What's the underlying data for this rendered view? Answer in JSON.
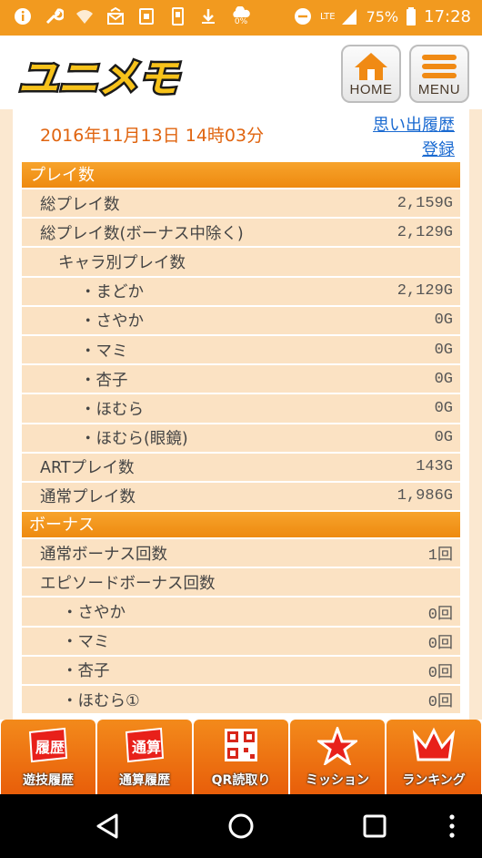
{
  "status_bar": {
    "signal_label": "0%",
    "network": "LTE",
    "battery": "75%",
    "time": "17:28",
    "icons": [
      "info-icon",
      "wrench-icon",
      "wifi-icon",
      "mail-icon",
      "sim-icon",
      "download-icon",
      "cloud-icon",
      "dnd-icon",
      "signal-icon",
      "battery-icon"
    ]
  },
  "header": {
    "logo_text": "ユニメモ",
    "home_label": "HOME",
    "menu_label": "MENU"
  },
  "content": {
    "datetime": "2016年11月13日  14時03分",
    "history_link_line1": "思い出履歴",
    "history_link_line2": "登録"
  },
  "sections": [
    {
      "title": "プレイ数",
      "rows": [
        {
          "label": "総プレイ数",
          "value": "2,159G"
        },
        {
          "label": "総プレイ数(ボーナス中除く)",
          "value": "2,129G"
        },
        {
          "label": "キャラ別プレイ数",
          "value": ""
        },
        {
          "label": "・まどか",
          "value": "2,129G"
        },
        {
          "label": "・さやか",
          "value": "0G"
        },
        {
          "label": "・マミ",
          "value": "0G"
        },
        {
          "label": "・杏子",
          "value": "0G"
        },
        {
          "label": "・ほむら",
          "value": "0G"
        },
        {
          "label": "・ほむら(眼鏡)",
          "value": "0G"
        },
        {
          "label": "ARTプレイ数",
          "value": "143G"
        },
        {
          "label": "通常プレイ数",
          "value": "1,986G"
        }
      ]
    },
    {
      "title": "ボーナス",
      "rows": [
        {
          "label": "通常ボーナス回数",
          "value": "1回"
        },
        {
          "label": "エピソードボーナス回数",
          "value": ""
        },
        {
          "label": "・さやか",
          "value": "0回"
        },
        {
          "label": "・マミ",
          "value": "0回"
        },
        {
          "label": "・杏子",
          "value": "0回"
        },
        {
          "label": "・ほむら①",
          "value": "0回"
        }
      ]
    }
  ],
  "tabs": [
    {
      "label": "遊技履歴",
      "icon_text": "履歴"
    },
    {
      "label": "通算履歴",
      "icon_text": "通算"
    },
    {
      "label": "QR読取り",
      "icon_text": ""
    },
    {
      "label": "ミッション",
      "icon_text": ""
    },
    {
      "label": "ランキング",
      "icon_text": ""
    }
  ],
  "colors": {
    "accent": "#f29a1f",
    "row_bg": "#fbe2c3",
    "date_text": "#e0640f",
    "link": "#1a6ad1"
  }
}
